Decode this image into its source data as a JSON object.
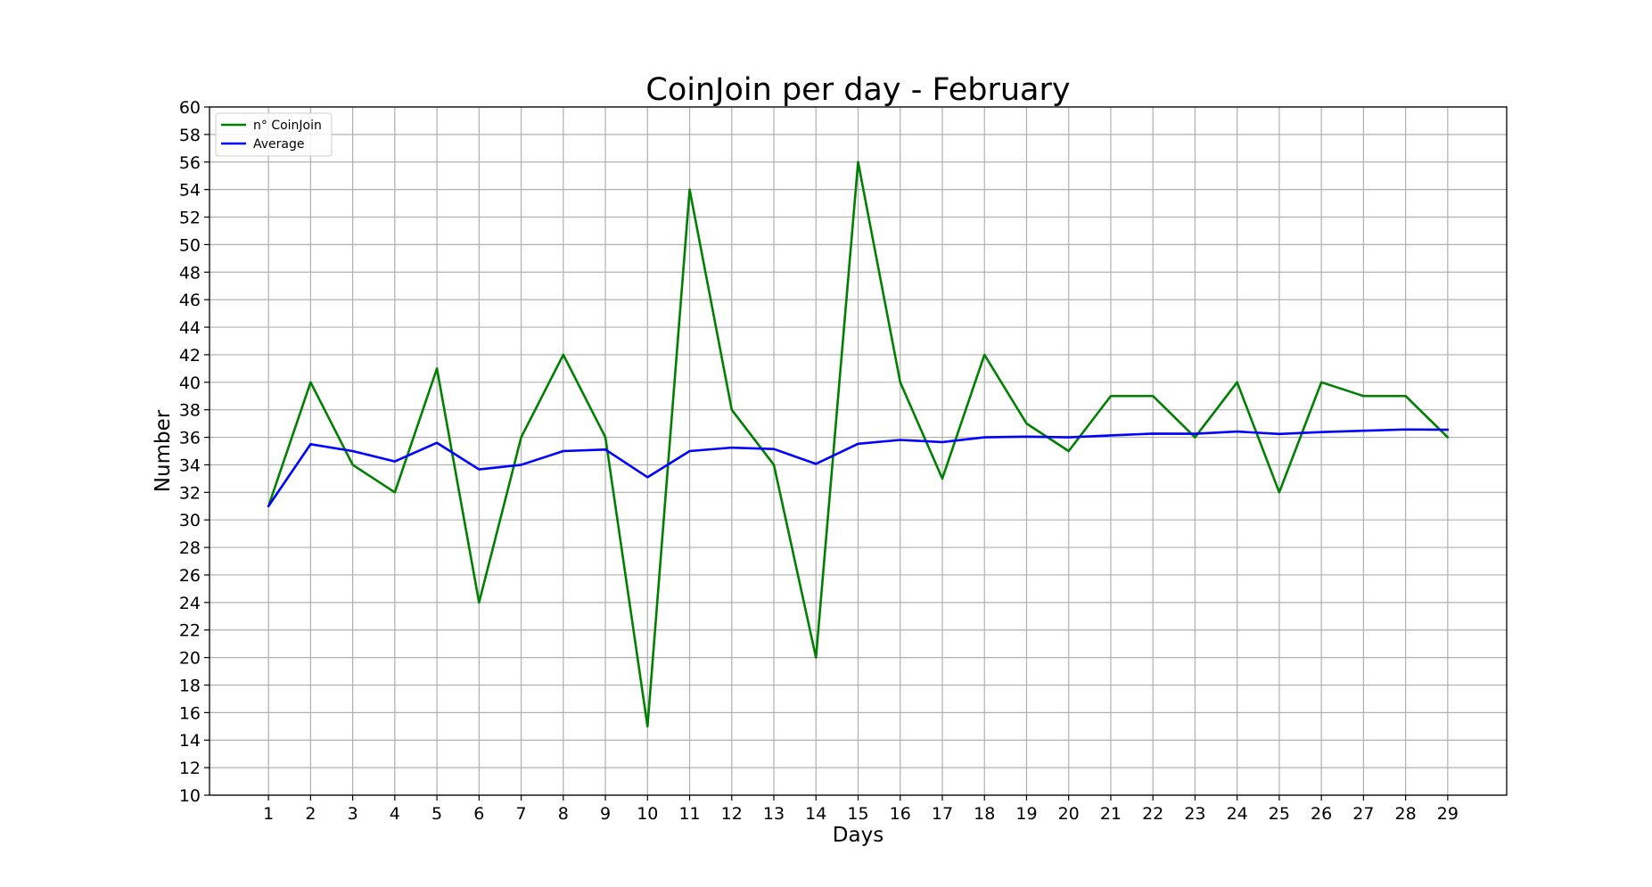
{
  "chart_data": {
    "type": "line",
    "title": "CoinJoin per day - February",
    "xlabel": "Days",
    "ylabel": "Number",
    "x": [
      1,
      2,
      3,
      4,
      5,
      6,
      7,
      8,
      9,
      10,
      11,
      12,
      13,
      14,
      15,
      16,
      17,
      18,
      19,
      20,
      21,
      22,
      23,
      24,
      25,
      26,
      27,
      28,
      29
    ],
    "x_tick_labels": [
      "1",
      "2",
      "3",
      "4",
      "5",
      "6",
      "7",
      "8",
      "9",
      "10",
      "11",
      "12",
      "13",
      "14",
      "15",
      "16",
      "17",
      "18",
      "19",
      "20",
      "21",
      "22",
      "23",
      "24",
      "25",
      "26",
      "27",
      "28",
      "29"
    ],
    "y_tick_labels": [
      "10",
      "12",
      "14",
      "16",
      "18",
      "20",
      "22",
      "24",
      "26",
      "28",
      "30",
      "32",
      "34",
      "36",
      "38",
      "40",
      "42",
      "44",
      "46",
      "48",
      "50",
      "52",
      "54",
      "56",
      "58",
      "60"
    ],
    "xlim": [
      -0.4,
      30.4
    ],
    "ylim": [
      10,
      60
    ],
    "grid": true,
    "legend_position": "top-left",
    "series": [
      {
        "name": "n° CoinJoin",
        "color": "#008000",
        "values": [
          31,
          40,
          34,
          32,
          41,
          24,
          36,
          42,
          36,
          15,
          54,
          38,
          34,
          20,
          56,
          40,
          33,
          42,
          37,
          35,
          39,
          39,
          36,
          40,
          32,
          40,
          39,
          39,
          36
        ]
      },
      {
        "name": "Average",
        "color": "#0000ff",
        "values": [
          31.0,
          35.5,
          35.0,
          34.25,
          35.6,
          33.67,
          34.0,
          35.0,
          35.11,
          33.1,
          35.0,
          35.25,
          35.15,
          34.07,
          35.53,
          35.81,
          35.65,
          36.0,
          36.05,
          36.0,
          36.14,
          36.27,
          36.26,
          36.42,
          36.24,
          36.38,
          36.48,
          36.57,
          36.55
        ]
      }
    ]
  }
}
